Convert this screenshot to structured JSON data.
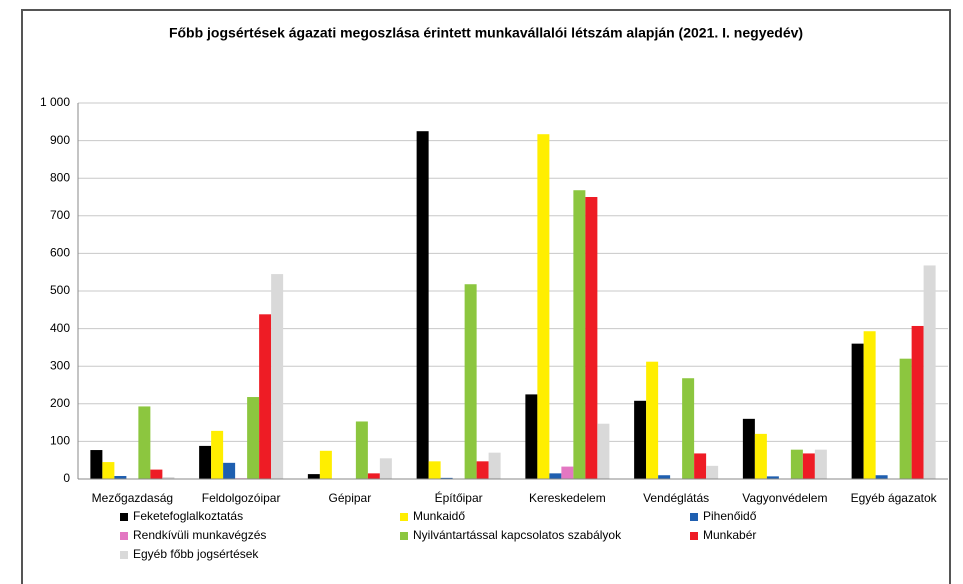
{
  "chart_data": {
    "type": "bar",
    "title": "Főbb jogsértések ágazati megoszlása érintett munkavállalói létszám alapján (2021. I. negyedév)",
    "categories": [
      "Mezőgazdaság",
      "Feldolgozóipar",
      "Gépipar",
      "Építőipar",
      "Kereskedelem",
      "Vendéglátás",
      "Vagyonvédelem",
      "Egyéb ágazatok"
    ],
    "series": [
      {
        "name": "Feketefoglalkoztatás",
        "color": "#000000",
        "values": [
          77,
          88,
          13,
          925,
          225,
          208,
          160,
          360
        ]
      },
      {
        "name": "Munkaidő",
        "color": "#ffee00",
        "values": [
          45,
          128,
          75,
          47,
          917,
          312,
          120,
          393
        ]
      },
      {
        "name": "Pihenőidő",
        "color": "#1f5fb0",
        "values": [
          8,
          43,
          0,
          3,
          15,
          10,
          7,
          10
        ]
      },
      {
        "name": "Rendkívüli munkavégzés",
        "color": "#e377c2",
        "values": [
          0,
          2,
          0,
          0,
          33,
          0,
          0,
          0
        ]
      },
      {
        "name": "Nyilvántartással kapcsolatos szabályok",
        "color": "#8cc63f",
        "values": [
          193,
          218,
          153,
          518,
          768,
          268,
          78,
          320
        ]
      },
      {
        "name": "Munkabér",
        "color": "#ee1c25",
        "values": [
          25,
          438,
          15,
          47,
          750,
          68,
          68,
          407
        ]
      },
      {
        "name": "Egyéb főbb jogsértések",
        "color": "#d9d9d9",
        "values": [
          5,
          545,
          55,
          70,
          147,
          35,
          78,
          568
        ]
      }
    ],
    "ylim": [
      0,
      1000
    ],
    "yticks": [
      0,
      100,
      200,
      300,
      400,
      500,
      600,
      700,
      800,
      900,
      {
        "value": 1000,
        "label": "1 000"
      }
    ],
    "grid": true
  }
}
